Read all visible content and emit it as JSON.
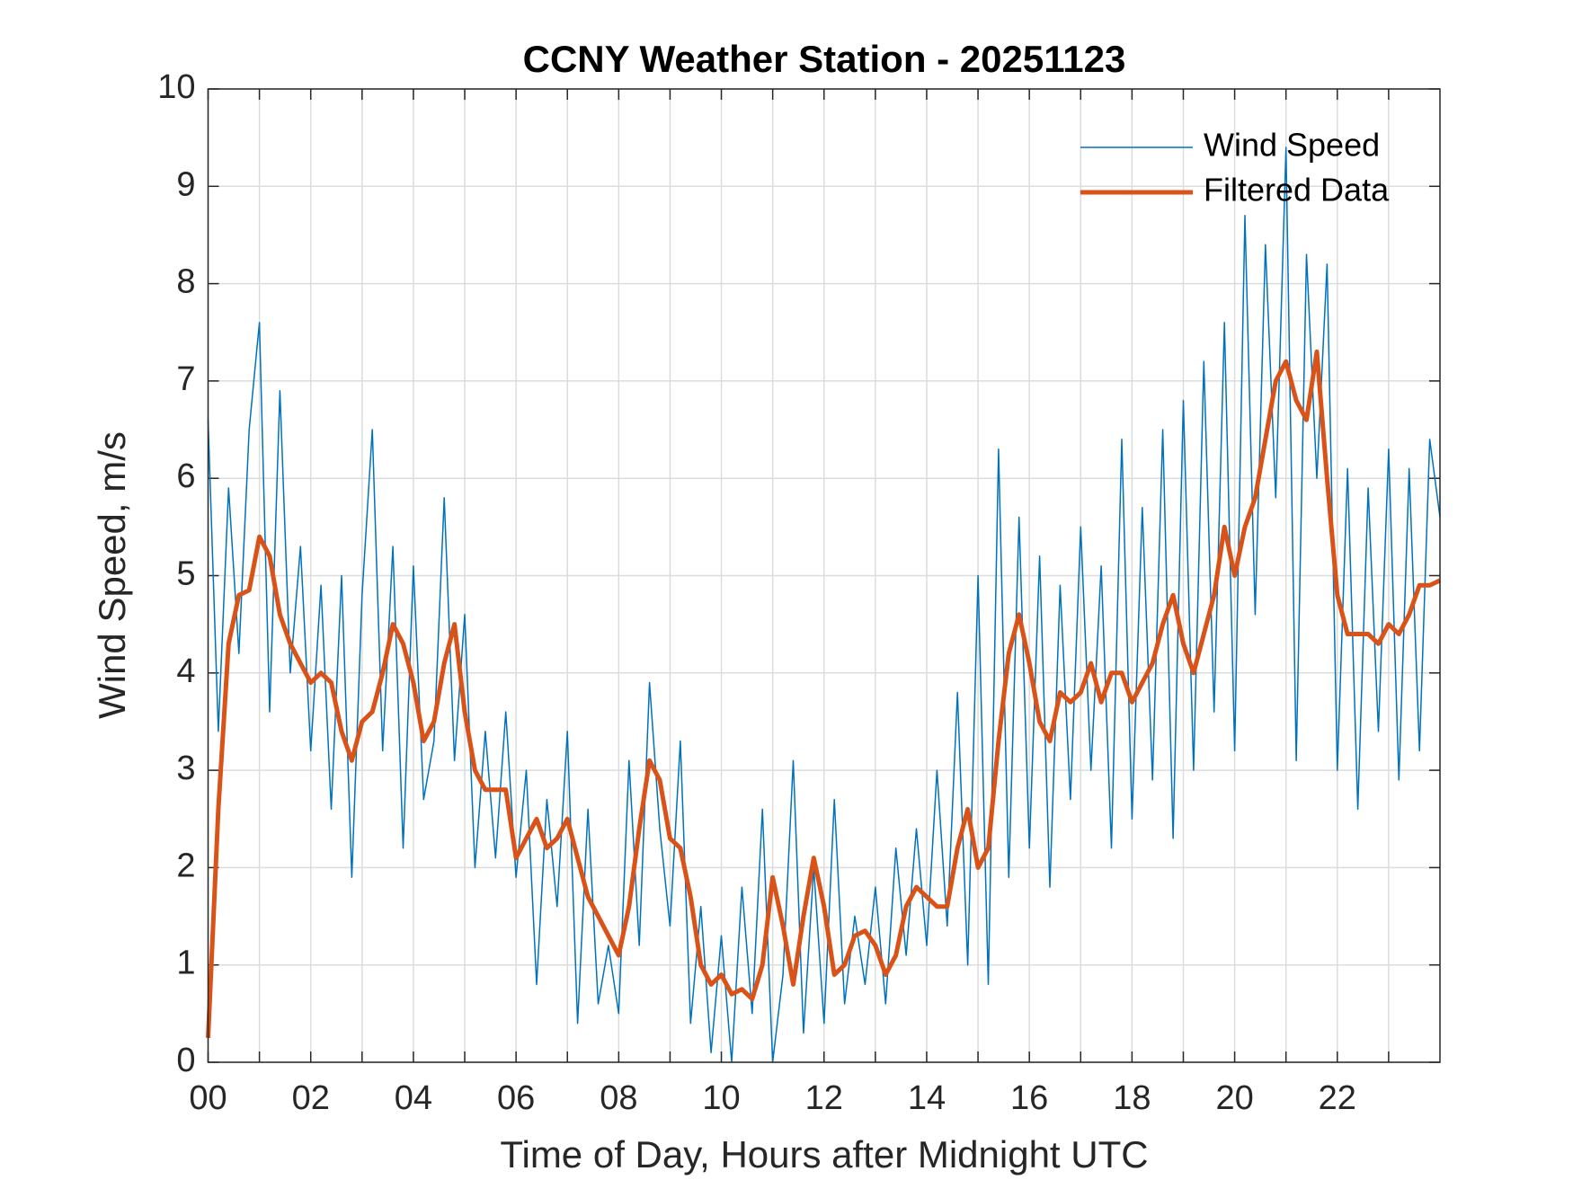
{
  "chart_data": {
    "type": "line",
    "title": "CCNY Weather Station - 20251123",
    "x_label": "Time of Day, Hours after Midnight UTC",
    "y_label": "Wind Speed, m/s",
    "x": [
      0,
      0.2,
      0.4,
      0.6,
      0.8,
      1.0,
      1.2,
      1.4,
      1.6,
      1.8,
      2.0,
      2.2,
      2.4,
      2.6,
      2.8,
      3.0,
      3.2,
      3.4,
      3.6,
      3.8,
      4.0,
      4.2,
      4.4,
      4.6,
      4.8,
      5.0,
      5.2,
      5.4,
      5.6,
      5.8,
      6.0,
      6.2,
      6.4,
      6.6,
      6.8,
      7.0,
      7.2,
      7.4,
      7.6,
      7.8,
      8.0,
      8.2,
      8.4,
      8.6,
      8.8,
      9.0,
      9.2,
      9.4,
      9.6,
      9.8,
      10.0,
      10.2,
      10.4,
      10.6,
      10.8,
      11.0,
      11.2,
      11.4,
      11.6,
      11.8,
      12.0,
      12.2,
      12.4,
      12.6,
      12.8,
      13.0,
      13.2,
      13.4,
      13.6,
      13.8,
      14.0,
      14.2,
      14.4,
      14.6,
      14.8,
      15.0,
      15.2,
      15.4,
      15.6,
      15.8,
      16.0,
      16.2,
      16.4,
      16.6,
      16.8,
      17.0,
      17.2,
      17.4,
      17.6,
      17.8,
      18.0,
      18.2,
      18.4,
      18.6,
      18.8,
      19.0,
      19.2,
      19.4,
      19.6,
      19.8,
      20.0,
      20.2,
      20.4,
      20.6,
      20.8,
      21.0,
      21.2,
      21.4,
      21.6,
      21.8,
      22.0,
      22.2,
      22.4,
      22.6,
      22.8,
      23.0,
      23.2,
      23.4,
      23.6,
      23.8,
      24.0
    ],
    "series": [
      {
        "name": "Wind Speed",
        "color": "#0072bd",
        "width": 1.5,
        "values": [
          6.6,
          3.4,
          5.9,
          4.2,
          6.5,
          7.6,
          3.6,
          6.9,
          4.0,
          5.3,
          3.2,
          4.9,
          2.6,
          5.0,
          1.9,
          4.8,
          6.5,
          3.2,
          5.3,
          2.2,
          5.1,
          2.7,
          3.3,
          5.8,
          3.1,
          4.6,
          2.0,
          3.4,
          2.1,
          3.6,
          1.9,
          3.0,
          0.8,
          2.7,
          1.6,
          3.4,
          0.4,
          2.6,
          0.6,
          1.2,
          0.5,
          3.1,
          1.2,
          3.9,
          2.4,
          1.4,
          3.3,
          0.4,
          1.6,
          0.1,
          1.3,
          0.0,
          1.8,
          0.5,
          2.6,
          0.0,
          0.9,
          3.1,
          0.3,
          2.0,
          0.4,
          2.7,
          0.6,
          1.5,
          0.8,
          1.8,
          0.6,
          2.2,
          1.1,
          2.4,
          1.2,
          3.0,
          1.4,
          3.8,
          1.0,
          5.0,
          0.8,
          6.3,
          1.9,
          5.6,
          2.2,
          5.2,
          1.8,
          4.9,
          2.7,
          5.5,
          3.0,
          5.1,
          2.2,
          6.4,
          2.5,
          5.7,
          2.9,
          6.5,
          2.3,
          6.8,
          3.0,
          7.2,
          3.6,
          7.6,
          3.2,
          8.7,
          4.6,
          8.4,
          5.8,
          9.4,
          3.1,
          8.3,
          6.0,
          8.2,
          3.0,
          6.1,
          2.6,
          5.9,
          3.4,
          6.3,
          2.9,
          6.1,
          3.2,
          6.4,
          5.6
        ]
      },
      {
        "name": "Filtered Data",
        "color": "#d95319",
        "width": 5,
        "values": [
          0.25,
          2.6,
          4.3,
          4.8,
          4.85,
          5.4,
          5.2,
          4.6,
          4.3,
          4.1,
          3.9,
          4.0,
          3.9,
          3.4,
          3.1,
          3.5,
          3.6,
          4.0,
          4.5,
          4.3,
          3.9,
          3.3,
          3.5,
          4.1,
          4.5,
          3.6,
          3.0,
          2.8,
          2.8,
          2.8,
          2.1,
          2.3,
          2.5,
          2.2,
          2.3,
          2.5,
          2.1,
          1.7,
          1.5,
          1.3,
          1.1,
          1.6,
          2.4,
          3.1,
          2.9,
          2.3,
          2.2,
          1.7,
          1.0,
          0.8,
          0.9,
          0.7,
          0.75,
          0.65,
          1.0,
          1.9,
          1.4,
          0.8,
          1.5,
          2.1,
          1.6,
          0.9,
          1.0,
          1.3,
          1.35,
          1.2,
          0.9,
          1.1,
          1.6,
          1.8,
          1.7,
          1.6,
          1.6,
          2.2,
          2.6,
          2.0,
          2.2,
          3.3,
          4.2,
          4.6,
          4.1,
          3.5,
          3.3,
          3.8,
          3.7,
          3.8,
          4.1,
          3.7,
          4.0,
          4.0,
          3.7,
          3.9,
          4.1,
          4.5,
          4.8,
          4.3,
          4.0,
          4.4,
          4.8,
          5.5,
          5.0,
          5.5,
          5.8,
          6.4,
          7.0,
          7.2,
          6.8,
          6.6,
          7.3,
          6.0,
          4.8,
          4.4,
          4.4,
          4.4,
          4.3,
          4.5,
          4.4,
          4.6,
          4.9,
          4.9,
          4.95
        ]
      }
    ],
    "xlim": [
      0,
      24
    ],
    "xticks": [
      {
        "value": 0,
        "label": "00"
      },
      {
        "value": 2,
        "label": "02"
      },
      {
        "value": 4,
        "label": "04"
      },
      {
        "value": 6,
        "label": "06"
      },
      {
        "value": 8,
        "label": "08"
      },
      {
        "value": 10,
        "label": "10"
      },
      {
        "value": 12,
        "label": "12"
      },
      {
        "value": 14,
        "label": "14"
      },
      {
        "value": 16,
        "label": "16"
      },
      {
        "value": 18,
        "label": "18"
      },
      {
        "value": 20,
        "label": "20"
      },
      {
        "value": 22,
        "label": "22"
      }
    ],
    "xminorticks": [
      1,
      3,
      5,
      7,
      9,
      11,
      13,
      15,
      17,
      19,
      21,
      23
    ],
    "ylim": [
      0,
      10
    ],
    "yticks": [
      0,
      1,
      2,
      3,
      4,
      5,
      6,
      7,
      8,
      9,
      10
    ],
    "grid": true,
    "legend": "upper right"
  }
}
